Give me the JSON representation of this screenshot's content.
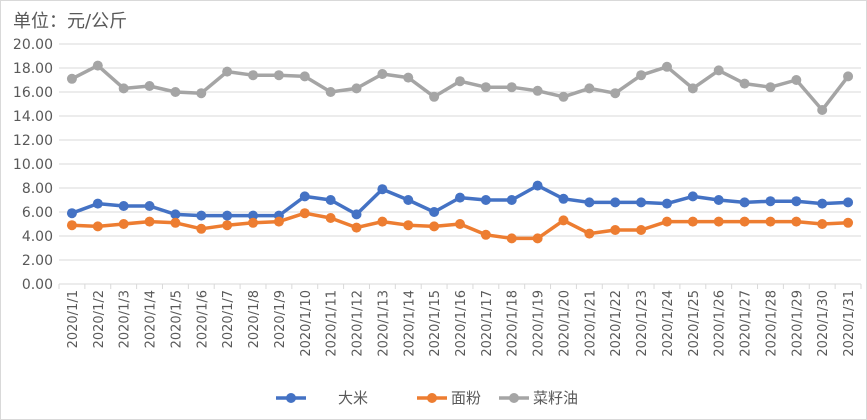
{
  "chart_data": {
    "type": "line",
    "unit_label": "单位：元/公斤",
    "categories": [
      "2020/1/1",
      "2020/1/2",
      "2020/1/3",
      "2020/1/4",
      "2020/1/5",
      "2020/1/6",
      "2020/1/7",
      "2020/1/8",
      "2020/1/9",
      "2020/1/10",
      "2020/1/11",
      "2020/1/12",
      "2020/1/13",
      "2020/1/14",
      "2020/1/15",
      "2020/1/16",
      "2020/1/17",
      "2020/1/18",
      "2020/1/19",
      "2020/1/20",
      "2020/1/21",
      "2020/1/22",
      "2020/1/23",
      "2020/1/24",
      "2020/1/25",
      "2020/1/26",
      "2020/1/27",
      "2020/1/28",
      "2020/1/29",
      "2020/1/30",
      "2020/1/31"
    ],
    "ylim": [
      0,
      20
    ],
    "yticks": [
      "0.00",
      "2.00",
      "4.00",
      "6.00",
      "8.00",
      "10.00",
      "12.00",
      "14.00",
      "16.00",
      "18.00",
      "20.00"
    ],
    "grid": true,
    "legend_position": "bottom",
    "series": [
      {
        "name": "大米",
        "color": "#4472c4",
        "values": [
          5.9,
          6.7,
          6.5,
          6.5,
          5.8,
          5.7,
          5.7,
          5.7,
          5.7,
          7.3,
          7.0,
          5.8,
          7.9,
          7.0,
          6.0,
          7.2,
          7.0,
          7.0,
          8.2,
          7.1,
          6.8,
          6.8,
          6.8,
          6.7,
          7.3,
          7.0,
          6.8,
          6.9,
          6.9,
          6.7,
          6.8
        ]
      },
      {
        "name": "面粉",
        "color": "#ed7d31",
        "values": [
          4.9,
          4.8,
          5.0,
          5.2,
          5.1,
          4.6,
          4.9,
          5.1,
          5.2,
          5.9,
          5.5,
          4.7,
          5.2,
          4.9,
          4.8,
          5.0,
          4.1,
          3.8,
          3.8,
          5.3,
          4.2,
          4.5,
          4.5,
          5.2,
          5.2,
          5.2,
          5.2,
          5.2,
          5.2,
          5.0,
          5.1
        ]
      },
      {
        "name": "菜籽油",
        "color": "#a5a5a5",
        "values": [
          17.1,
          18.2,
          16.3,
          16.5,
          16.0,
          15.9,
          17.7,
          17.4,
          17.4,
          17.3,
          16.0,
          16.3,
          17.5,
          17.2,
          15.6,
          16.9,
          16.4,
          16.4,
          16.1,
          15.6,
          16.3,
          15.9,
          17.4,
          18.1,
          16.3,
          17.8,
          16.7,
          16.4,
          17.0,
          14.5,
          17.3
        ]
      }
    ]
  }
}
